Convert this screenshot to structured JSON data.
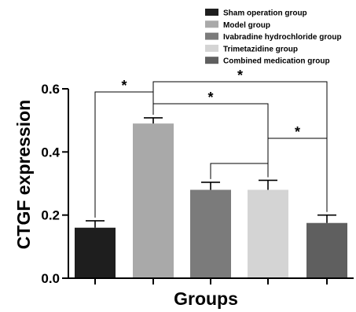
{
  "chart_data": {
    "type": "bar",
    "categories": [
      "Sham operation group",
      "Model group",
      "Ivabradine hydrochloride group",
      "Trimetazidine group",
      "Combined medication group"
    ],
    "values": [
      0.16,
      0.49,
      0.28,
      0.28,
      0.175
    ],
    "errors": [
      0.022,
      0.018,
      0.024,
      0.03,
      0.025
    ],
    "colors": [
      "#1e1e1e",
      "#a9a9a9",
      "#7b7b7b",
      "#d4d4d4",
      "#5f5f5f"
    ],
    "xlabel": "Groups",
    "ylabel": "CTGF expression",
    "ylim": [
      0,
      0.6
    ],
    "yticks": [
      "0.0",
      "0.2",
      "0.4",
      "0.6"
    ],
    "grid": false,
    "legend_position": "top-right",
    "significance": [
      {
        "from": 0,
        "to": 1,
        "label": "*"
      },
      {
        "from": 1,
        "to": 4,
        "label": "*"
      },
      {
        "from": 1,
        "to": 3,
        "label": "*"
      },
      {
        "from": 2,
        "to": 3,
        "label": ""
      },
      {
        "from": 3,
        "to": 4,
        "label": "*"
      }
    ]
  }
}
